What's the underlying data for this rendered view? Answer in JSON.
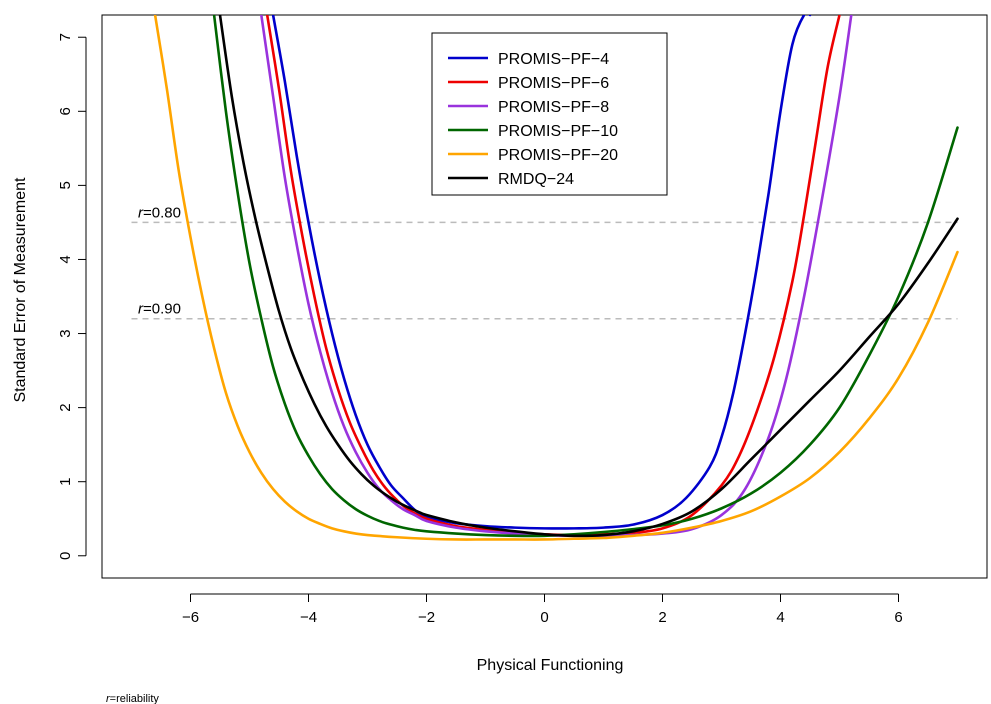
{
  "chart_data": {
    "type": "line",
    "xlabel": "Physical Functioning",
    "ylabel": "Standard Error of Measurement",
    "xlim": [
      -7.5,
      7.5
    ],
    "ylim": [
      -0.3,
      7.3
    ],
    "xticks": [
      -6,
      -4,
      -2,
      0,
      2,
      4,
      6
    ],
    "yticks": [
      0,
      1,
      2,
      3,
      4,
      5,
      6,
      7
    ],
    "legend_position": "top-center",
    "grid": false,
    "reference_lines": [
      {
        "y": 4.5,
        "label_italic": "r",
        "label_rest": "=0.80",
        "color": "#bbbbbb"
      },
      {
        "y": 3.2,
        "label_italic": "r",
        "label_rest": "=0.90",
        "color": "#bbbbbb"
      }
    ],
    "footnote": {
      "italic": "r",
      "rest": "=reliability"
    },
    "series": [
      {
        "name": "PROMIS−PF−4",
        "color": "#0000cc",
        "x": [
          -4.6,
          -4.4,
          -4.2,
          -4.0,
          -3.8,
          -3.6,
          -3.4,
          -3.2,
          -3.0,
          -2.8,
          -2.6,
          -2.4,
          -2.2,
          -2.0,
          -1.5,
          -1.0,
          -0.5,
          0,
          0.5,
          1.0,
          1.5,
          2.0,
          2.4,
          2.8,
          3.0,
          3.2,
          3.4,
          3.6,
          3.8,
          4.0,
          4.2,
          4.4,
          4.5
        ],
        "y": [
          7.3,
          6.4,
          5.4,
          4.5,
          3.7,
          3.0,
          2.4,
          1.9,
          1.5,
          1.2,
          0.95,
          0.78,
          0.62,
          0.52,
          0.44,
          0.4,
          0.38,
          0.37,
          0.37,
          0.38,
          0.42,
          0.55,
          0.78,
          1.2,
          1.6,
          2.2,
          3.0,
          3.9,
          4.9,
          6.0,
          6.9,
          7.3,
          7.3
        ]
      },
      {
        "name": "PROMIS−PF−6",
        "color": "#ee0000",
        "x": [
          -4.7,
          -4.5,
          -4.3,
          -4.1,
          -3.9,
          -3.7,
          -3.5,
          -3.3,
          -3.1,
          -2.9,
          -2.7,
          -2.5,
          -2.3,
          -2.0,
          -1.5,
          -1.0,
          -0.5,
          0,
          0.5,
          1.0,
          1.5,
          2.0,
          2.5,
          3.0,
          3.3,
          3.6,
          3.9,
          4.2,
          4.4,
          4.6,
          4.8,
          5.0
        ],
        "y": [
          7.3,
          6.3,
          5.2,
          4.3,
          3.5,
          2.8,
          2.25,
          1.8,
          1.45,
          1.15,
          0.92,
          0.75,
          0.62,
          0.5,
          0.4,
          0.35,
          0.31,
          0.29,
          0.28,
          0.29,
          0.31,
          0.37,
          0.55,
          0.95,
          1.35,
          1.95,
          2.7,
          3.7,
          4.6,
          5.6,
          6.6,
          7.3
        ]
      },
      {
        "name": "PROMIS−PF−8",
        "color": "#9933dd",
        "x": [
          -4.8,
          -4.6,
          -4.4,
          -4.2,
          -4.0,
          -3.8,
          -3.6,
          -3.4,
          -3.2,
          -3.0,
          -2.8,
          -2.6,
          -2.4,
          -2.2,
          -2.0,
          -1.5,
          -1.0,
          -0.5,
          0,
          0.5,
          1.0,
          1.5,
          2.0,
          2.5,
          3.0,
          3.4,
          3.8,
          4.1,
          4.4,
          4.7,
          5.0,
          5.2
        ],
        "y": [
          7.3,
          6.2,
          5.1,
          4.2,
          3.4,
          2.75,
          2.2,
          1.75,
          1.4,
          1.12,
          0.9,
          0.75,
          0.63,
          0.55,
          0.47,
          0.38,
          0.33,
          0.3,
          0.28,
          0.27,
          0.27,
          0.28,
          0.3,
          0.36,
          0.55,
          0.9,
          1.6,
          2.4,
          3.5,
          4.8,
          6.2,
          7.3
        ]
      },
      {
        "name": "PROMIS−PF−10",
        "color": "#006600",
        "x": [
          -5.6,
          -5.4,
          -5.2,
          -5.0,
          -4.8,
          -4.6,
          -4.4,
          -4.2,
          -4.0,
          -3.8,
          -3.6,
          -3.4,
          -3.2,
          -3.0,
          -2.8,
          -2.6,
          -2.4,
          -2.2,
          -2.0,
          -1.5,
          -1.0,
          -0.5,
          0,
          0.5,
          1.0,
          1.5,
          2.0,
          2.5,
          3.0,
          3.5,
          4.0,
          4.5,
          5.0,
          5.5,
          6.0,
          6.5,
          7.0
        ],
        "y": [
          7.3,
          6.0,
          4.9,
          3.95,
          3.2,
          2.55,
          2.05,
          1.65,
          1.35,
          1.1,
          0.9,
          0.75,
          0.63,
          0.54,
          0.47,
          0.42,
          0.38,
          0.35,
          0.33,
          0.3,
          0.28,
          0.27,
          0.27,
          0.29,
          0.32,
          0.36,
          0.41,
          0.5,
          0.64,
          0.84,
          1.12,
          1.5,
          2.0,
          2.7,
          3.5,
          4.5,
          5.78
        ]
      },
      {
        "name": "PROMIS−PF−20",
        "color": "#ffa500",
        "x": [
          -6.6,
          -6.4,
          -6.2,
          -6.0,
          -5.8,
          -5.6,
          -5.4,
          -5.2,
          -5.0,
          -4.8,
          -4.6,
          -4.4,
          -4.2,
          -4.0,
          -3.8,
          -3.6,
          -3.4,
          -3.2,
          -3.0,
          -2.5,
          -2.0,
          -1.5,
          -1.0,
          -0.5,
          0,
          0.5,
          1.0,
          1.5,
          2.0,
          2.5,
          3.0,
          3.5,
          4.0,
          4.5,
          5.0,
          5.5,
          6.0,
          6.5,
          7.0
        ],
        "y": [
          7.3,
          6.3,
          5.2,
          4.3,
          3.5,
          2.8,
          2.2,
          1.75,
          1.4,
          1.12,
          0.9,
          0.73,
          0.6,
          0.5,
          0.43,
          0.37,
          0.33,
          0.3,
          0.28,
          0.25,
          0.23,
          0.22,
          0.22,
          0.22,
          0.22,
          0.23,
          0.24,
          0.27,
          0.31,
          0.38,
          0.47,
          0.6,
          0.8,
          1.05,
          1.4,
          1.85,
          2.4,
          3.15,
          4.1
        ]
      },
      {
        "name": "RMDQ−24",
        "color": "#000000",
        "x": [
          -5.5,
          -5.3,
          -5.1,
          -4.9,
          -4.7,
          -4.5,
          -4.3,
          -4.1,
          -3.9,
          -3.7,
          -3.5,
          -3.3,
          -3.1,
          -2.9,
          -2.7,
          -2.5,
          -2.3,
          -2.1,
          -2.0,
          -1.5,
          -1.0,
          -0.5,
          0,
          0.5,
          1.0,
          1.5,
          2.0,
          2.5,
          3.0,
          3.5,
          4.0,
          4.5,
          5.0,
          5.5,
          6.0,
          6.5,
          7.0
        ],
        "y": [
          7.3,
          6.2,
          5.3,
          4.55,
          3.9,
          3.3,
          2.8,
          2.4,
          2.05,
          1.75,
          1.5,
          1.28,
          1.1,
          0.95,
          0.83,
          0.73,
          0.65,
          0.58,
          0.55,
          0.45,
          0.38,
          0.33,
          0.29,
          0.27,
          0.28,
          0.33,
          0.43,
          0.6,
          0.9,
          1.3,
          1.7,
          2.1,
          2.5,
          2.95,
          3.4,
          3.95,
          4.55
        ]
      }
    ]
  }
}
